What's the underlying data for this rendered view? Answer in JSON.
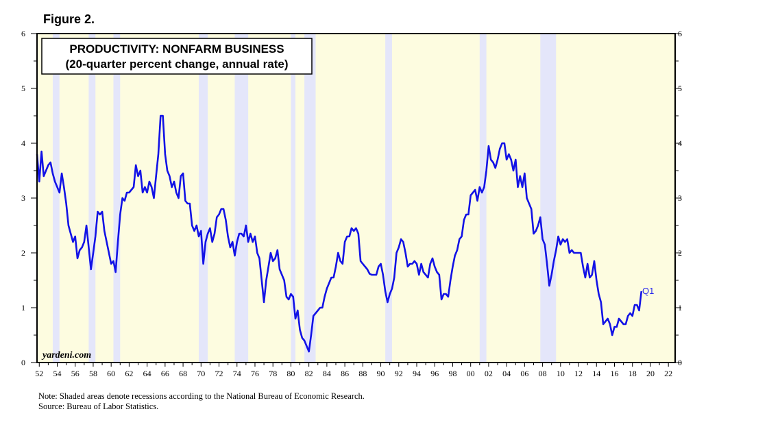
{
  "figure_label": "Figure 2.",
  "notes": {
    "note": "Note: Shaded areas denote recessions according to the National Bureau of Economic Research.",
    "source": "Source: Bureau of Labor Statistics."
  },
  "colors": {
    "background": "#fdfce0",
    "recession": "#e4e6fa",
    "line": "#1212e6",
    "q1_label": "#2222ee"
  },
  "chart_data": {
    "type": "line",
    "title": "PRODUCTIVITY: NONFARM BUSINESS",
    "subtitle": "(20-quarter percent change, annual rate)",
    "watermark": "yardeni.com",
    "end_label": "Q1",
    "xlim": [
      1951.75,
      2022.75
    ],
    "ylim": [
      0,
      6
    ],
    "y_ticks": [
      0,
      1,
      2,
      3,
      4,
      5,
      6
    ],
    "x_tick_labels": [
      "52",
      "54",
      "56",
      "58",
      "60",
      "62",
      "64",
      "66",
      "68",
      "70",
      "72",
      "74",
      "76",
      "78",
      "80",
      "82",
      "84",
      "86",
      "88",
      "90",
      "92",
      "94",
      "96",
      "98",
      "00",
      "02",
      "04",
      "06",
      "08",
      "10",
      "12",
      "14",
      "16",
      "18",
      "20",
      "22"
    ],
    "recessions": [
      [
        1953.5,
        1954.25
      ],
      [
        1957.5,
        1958.25
      ],
      [
        1960.25,
        1961.0
      ],
      [
        1969.75,
        1970.75
      ],
      [
        1973.75,
        1975.25
      ],
      [
        1980.0,
        1980.5
      ],
      [
        1981.5,
        1982.75
      ],
      [
        1990.5,
        1991.25
      ],
      [
        2001.0,
        2001.75
      ],
      [
        2007.75,
        2009.5
      ]
    ],
    "series": [
      {
        "values": [
          [
            1951.75,
            3.8
          ],
          [
            1952.0,
            3.3
          ],
          [
            1952.25,
            3.85
          ],
          [
            1952.5,
            3.4
          ],
          [
            1952.75,
            3.5
          ],
          [
            1953.0,
            3.6
          ],
          [
            1953.25,
            3.65
          ],
          [
            1953.5,
            3.45
          ],
          [
            1953.75,
            3.3
          ],
          [
            1954.0,
            3.2
          ],
          [
            1954.25,
            3.1
          ],
          [
            1954.5,
            3.45
          ],
          [
            1954.75,
            3.2
          ],
          [
            1955.0,
            2.9
          ],
          [
            1955.25,
            2.5
          ],
          [
            1955.5,
            2.35
          ],
          [
            1955.75,
            2.2
          ],
          [
            1956.0,
            2.3
          ],
          [
            1956.25,
            1.9
          ],
          [
            1956.5,
            2.05
          ],
          [
            1956.75,
            2.1
          ],
          [
            1957.0,
            2.2
          ],
          [
            1957.25,
            2.5
          ],
          [
            1957.5,
            2.1
          ],
          [
            1957.75,
            1.7
          ],
          [
            1958.0,
            2.0
          ],
          [
            1958.25,
            2.3
          ],
          [
            1958.5,
            2.75
          ],
          [
            1958.75,
            2.7
          ],
          [
            1959.0,
            2.75
          ],
          [
            1959.25,
            2.4
          ],
          [
            1959.5,
            2.2
          ],
          [
            1959.75,
            2.0
          ],
          [
            1960.0,
            1.8
          ],
          [
            1960.25,
            1.85
          ],
          [
            1960.5,
            1.65
          ],
          [
            1960.75,
            2.2
          ],
          [
            1961.0,
            2.7
          ],
          [
            1961.25,
            3.0
          ],
          [
            1961.5,
            2.95
          ],
          [
            1961.75,
            3.1
          ],
          [
            1962.0,
            3.1
          ],
          [
            1962.25,
            3.15
          ],
          [
            1962.5,
            3.2
          ],
          [
            1962.75,
            3.6
          ],
          [
            1963.0,
            3.4
          ],
          [
            1963.25,
            3.5
          ],
          [
            1963.5,
            3.1
          ],
          [
            1963.75,
            3.2
          ],
          [
            1964.0,
            3.1
          ],
          [
            1964.25,
            3.3
          ],
          [
            1964.5,
            3.2
          ],
          [
            1964.75,
            3.0
          ],
          [
            1965.0,
            3.4
          ],
          [
            1965.25,
            3.8
          ],
          [
            1965.5,
            4.5
          ],
          [
            1965.75,
            4.5
          ],
          [
            1966.0,
            3.8
          ],
          [
            1966.25,
            3.5
          ],
          [
            1966.5,
            3.4
          ],
          [
            1966.75,
            3.2
          ],
          [
            1967.0,
            3.3
          ],
          [
            1967.25,
            3.1
          ],
          [
            1967.5,
            3.0
          ],
          [
            1967.75,
            3.4
          ],
          [
            1968.0,
            3.45
          ],
          [
            1968.25,
            2.95
          ],
          [
            1968.5,
            2.9
          ],
          [
            1968.75,
            2.9
          ],
          [
            1969.0,
            2.5
          ],
          [
            1969.25,
            2.4
          ],
          [
            1969.5,
            2.5
          ],
          [
            1969.75,
            2.3
          ],
          [
            1970.0,
            2.4
          ],
          [
            1970.25,
            1.8
          ],
          [
            1970.5,
            2.2
          ],
          [
            1970.75,
            2.35
          ],
          [
            1971.0,
            2.45
          ],
          [
            1971.25,
            2.2
          ],
          [
            1971.5,
            2.35
          ],
          [
            1971.75,
            2.65
          ],
          [
            1972.0,
            2.7
          ],
          [
            1972.25,
            2.8
          ],
          [
            1972.5,
            2.8
          ],
          [
            1972.75,
            2.6
          ],
          [
            1973.0,
            2.3
          ],
          [
            1973.25,
            2.1
          ],
          [
            1973.5,
            2.2
          ],
          [
            1973.75,
            1.95
          ],
          [
            1974.0,
            2.2
          ],
          [
            1974.25,
            2.35
          ],
          [
            1974.5,
            2.35
          ],
          [
            1974.75,
            2.3
          ],
          [
            1975.0,
            2.5
          ],
          [
            1975.25,
            2.2
          ],
          [
            1975.5,
            2.35
          ],
          [
            1975.75,
            2.2
          ],
          [
            1976.0,
            2.3
          ],
          [
            1976.25,
            2.0
          ],
          [
            1976.5,
            1.9
          ],
          [
            1976.75,
            1.5
          ],
          [
            1977.0,
            1.1
          ],
          [
            1977.25,
            1.5
          ],
          [
            1977.5,
            1.75
          ],
          [
            1977.75,
            2.0
          ],
          [
            1978.0,
            1.85
          ],
          [
            1978.25,
            1.9
          ],
          [
            1978.5,
            2.05
          ],
          [
            1978.75,
            1.7
          ],
          [
            1979.0,
            1.6
          ],
          [
            1979.25,
            1.5
          ],
          [
            1979.5,
            1.2
          ],
          [
            1979.75,
            1.15
          ],
          [
            1980.0,
            1.25
          ],
          [
            1980.25,
            1.2
          ],
          [
            1980.5,
            0.8
          ],
          [
            1980.75,
            0.95
          ],
          [
            1981.0,
            0.6
          ],
          [
            1981.25,
            0.45
          ],
          [
            1981.5,
            0.4
          ],
          [
            1981.75,
            0.3
          ],
          [
            1982.0,
            0.2
          ],
          [
            1982.25,
            0.5
          ],
          [
            1982.5,
            0.85
          ],
          [
            1982.75,
            0.9
          ],
          [
            1983.0,
            0.95
          ],
          [
            1983.25,
            1.0
          ],
          [
            1983.5,
            1.0
          ],
          [
            1983.75,
            1.2
          ],
          [
            1984.0,
            1.35
          ],
          [
            1984.25,
            1.45
          ],
          [
            1984.5,
            1.55
          ],
          [
            1984.75,
            1.55
          ],
          [
            1985.0,
            1.75
          ],
          [
            1985.25,
            2.0
          ],
          [
            1985.5,
            1.85
          ],
          [
            1985.75,
            1.8
          ],
          [
            1986.0,
            2.2
          ],
          [
            1986.25,
            2.3
          ],
          [
            1986.5,
            2.3
          ],
          [
            1986.75,
            2.45
          ],
          [
            1987.0,
            2.4
          ],
          [
            1987.25,
            2.45
          ],
          [
            1987.5,
            2.35
          ],
          [
            1987.75,
            1.85
          ],
          [
            1988.0,
            1.8
          ],
          [
            1988.25,
            1.75
          ],
          [
            1988.5,
            1.7
          ],
          [
            1988.75,
            1.62
          ],
          [
            1989.0,
            1.6
          ],
          [
            1989.25,
            1.6
          ],
          [
            1989.5,
            1.6
          ],
          [
            1989.75,
            1.75
          ],
          [
            1990.0,
            1.8
          ],
          [
            1990.25,
            1.6
          ],
          [
            1990.5,
            1.3
          ],
          [
            1990.75,
            1.1
          ],
          [
            1991.0,
            1.25
          ],
          [
            1991.25,
            1.35
          ],
          [
            1991.5,
            1.55
          ],
          [
            1991.75,
            2.0
          ],
          [
            1992.0,
            2.1
          ],
          [
            1992.25,
            2.25
          ],
          [
            1992.5,
            2.2
          ],
          [
            1992.75,
            2.0
          ],
          [
            1993.0,
            1.75
          ],
          [
            1993.25,
            1.8
          ],
          [
            1993.5,
            1.8
          ],
          [
            1993.75,
            1.85
          ],
          [
            1994.0,
            1.8
          ],
          [
            1994.25,
            1.6
          ],
          [
            1994.5,
            1.8
          ],
          [
            1994.75,
            1.65
          ],
          [
            1995.0,
            1.6
          ],
          [
            1995.25,
            1.55
          ],
          [
            1995.5,
            1.8
          ],
          [
            1995.75,
            1.9
          ],
          [
            1996.0,
            1.75
          ],
          [
            1996.25,
            1.65
          ],
          [
            1996.5,
            1.6
          ],
          [
            1996.75,
            1.15
          ],
          [
            1997.0,
            1.25
          ],
          [
            1997.25,
            1.25
          ],
          [
            1997.5,
            1.2
          ],
          [
            1997.75,
            1.5
          ],
          [
            1998.0,
            1.75
          ],
          [
            1998.25,
            1.95
          ],
          [
            1998.5,
            2.05
          ],
          [
            1998.75,
            2.25
          ],
          [
            1999.0,
            2.3
          ],
          [
            1999.25,
            2.6
          ],
          [
            1999.5,
            2.7
          ],
          [
            1999.75,
            2.7
          ],
          [
            2000.0,
            3.05
          ],
          [
            2000.25,
            3.1
          ],
          [
            2000.5,
            3.15
          ],
          [
            2000.75,
            2.95
          ],
          [
            2001.0,
            3.2
          ],
          [
            2001.25,
            3.1
          ],
          [
            2001.5,
            3.2
          ],
          [
            2001.75,
            3.5
          ],
          [
            2002.0,
            3.95
          ],
          [
            2002.25,
            3.7
          ],
          [
            2002.5,
            3.65
          ],
          [
            2002.75,
            3.55
          ],
          [
            2003.0,
            3.7
          ],
          [
            2003.25,
            3.9
          ],
          [
            2003.5,
            4.0
          ],
          [
            2003.75,
            4.0
          ],
          [
            2004.0,
            3.7
          ],
          [
            2004.25,
            3.8
          ],
          [
            2004.5,
            3.7
          ],
          [
            2004.75,
            3.5
          ],
          [
            2005.0,
            3.7
          ],
          [
            2005.25,
            3.2
          ],
          [
            2005.5,
            3.4
          ],
          [
            2005.75,
            3.2
          ],
          [
            2006.0,
            3.45
          ],
          [
            2006.25,
            3.0
          ],
          [
            2006.5,
            2.9
          ],
          [
            2006.75,
            2.8
          ],
          [
            2007.0,
            2.35
          ],
          [
            2007.25,
            2.4
          ],
          [
            2007.5,
            2.5
          ],
          [
            2007.75,
            2.65
          ],
          [
            2008.0,
            2.25
          ],
          [
            2008.25,
            2.15
          ],
          [
            2008.5,
            1.8
          ],
          [
            2008.75,
            1.4
          ],
          [
            2009.0,
            1.6
          ],
          [
            2009.25,
            1.85
          ],
          [
            2009.5,
            2.05
          ],
          [
            2009.75,
            2.3
          ],
          [
            2010.0,
            2.15
          ],
          [
            2010.25,
            2.25
          ],
          [
            2010.5,
            2.2
          ],
          [
            2010.75,
            2.25
          ],
          [
            2011.0,
            2.0
          ],
          [
            2011.25,
            2.05
          ],
          [
            2011.5,
            2.0
          ],
          [
            2011.75,
            2.0
          ],
          [
            2012.0,
            2.0
          ],
          [
            2012.25,
            2.0
          ],
          [
            2012.5,
            1.75
          ],
          [
            2012.75,
            1.55
          ],
          [
            2013.0,
            1.8
          ],
          [
            2013.25,
            1.55
          ],
          [
            2013.5,
            1.6
          ],
          [
            2013.75,
            1.85
          ],
          [
            2014.0,
            1.5
          ],
          [
            2014.25,
            1.25
          ],
          [
            2014.5,
            1.1
          ],
          [
            2014.75,
            0.7
          ],
          [
            2015.0,
            0.75
          ],
          [
            2015.25,
            0.8
          ],
          [
            2015.5,
            0.7
          ],
          [
            2015.75,
            0.5
          ],
          [
            2016.0,
            0.65
          ],
          [
            2016.25,
            0.65
          ],
          [
            2016.5,
            0.8
          ],
          [
            2016.75,
            0.75
          ],
          [
            2017.0,
            0.7
          ],
          [
            2017.25,
            0.7
          ],
          [
            2017.5,
            0.85
          ],
          [
            2017.75,
            0.9
          ],
          [
            2018.0,
            0.85
          ],
          [
            2018.25,
            1.05
          ],
          [
            2018.5,
            1.05
          ],
          [
            2018.75,
            0.95
          ],
          [
            2019.0,
            1.3
          ]
        ]
      }
    ]
  }
}
